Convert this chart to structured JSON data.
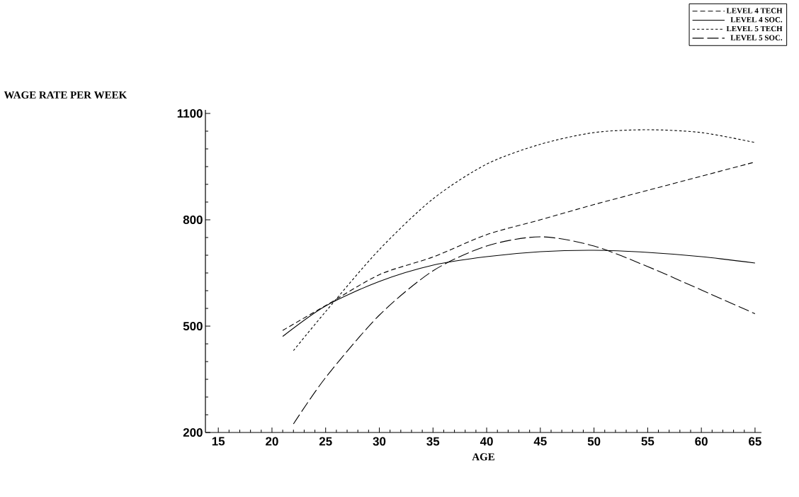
{
  "chart_data": {
    "type": "line",
    "xlabel": "AGE",
    "ylabel": "WAGE RATE PER WEEK",
    "xlim": [
      13.8,
      65.6
    ],
    "ylim": [
      200,
      1110
    ],
    "xticks": [
      15,
      20,
      25,
      30,
      35,
      40,
      45,
      50,
      55,
      60,
      65
    ],
    "yticks": [
      200,
      500,
      800,
      1100
    ],
    "legend": "top right",
    "marker": "none",
    "grid": false,
    "series": [
      {
        "name": "LEVEL 4 TECH",
        "color": "#000000",
        "line_style": "dashed",
        "x": [
          21,
          25,
          30,
          35,
          40,
          45,
          50,
          55,
          60,
          65
        ],
        "values": [
          488,
          558,
          645,
          695,
          758,
          800,
          843,
          883,
          923,
          963
        ]
      },
      {
        "name": "LEVEL 4 SOC.",
        "color": "#000000",
        "line_style": "solid",
        "x": [
          21,
          25,
          30,
          35,
          40,
          45,
          50,
          55,
          60,
          65
        ],
        "values": [
          471,
          557,
          626,
          672,
          696,
          710,
          714,
          708,
          696,
          678
        ]
      },
      {
        "name": "LEVEL 5 TECH",
        "color": "#000000",
        "line_style": "dotted",
        "x": [
          22,
          25,
          30,
          35,
          40,
          45,
          50,
          55,
          60,
          65
        ],
        "values": [
          431,
          541,
          716,
          859,
          957,
          1013,
          1046,
          1054,
          1046,
          1018
        ]
      },
      {
        "name": "LEVEL 5 SOC.",
        "color": "#000000",
        "line_style": "long dashed",
        "x": [
          22,
          25,
          30,
          35,
          40,
          45,
          50,
          55,
          60,
          65
        ],
        "values": [
          224,
          355,
          531,
          656,
          726,
          752,
          726,
          668,
          602,
          535
        ]
      }
    ]
  }
}
